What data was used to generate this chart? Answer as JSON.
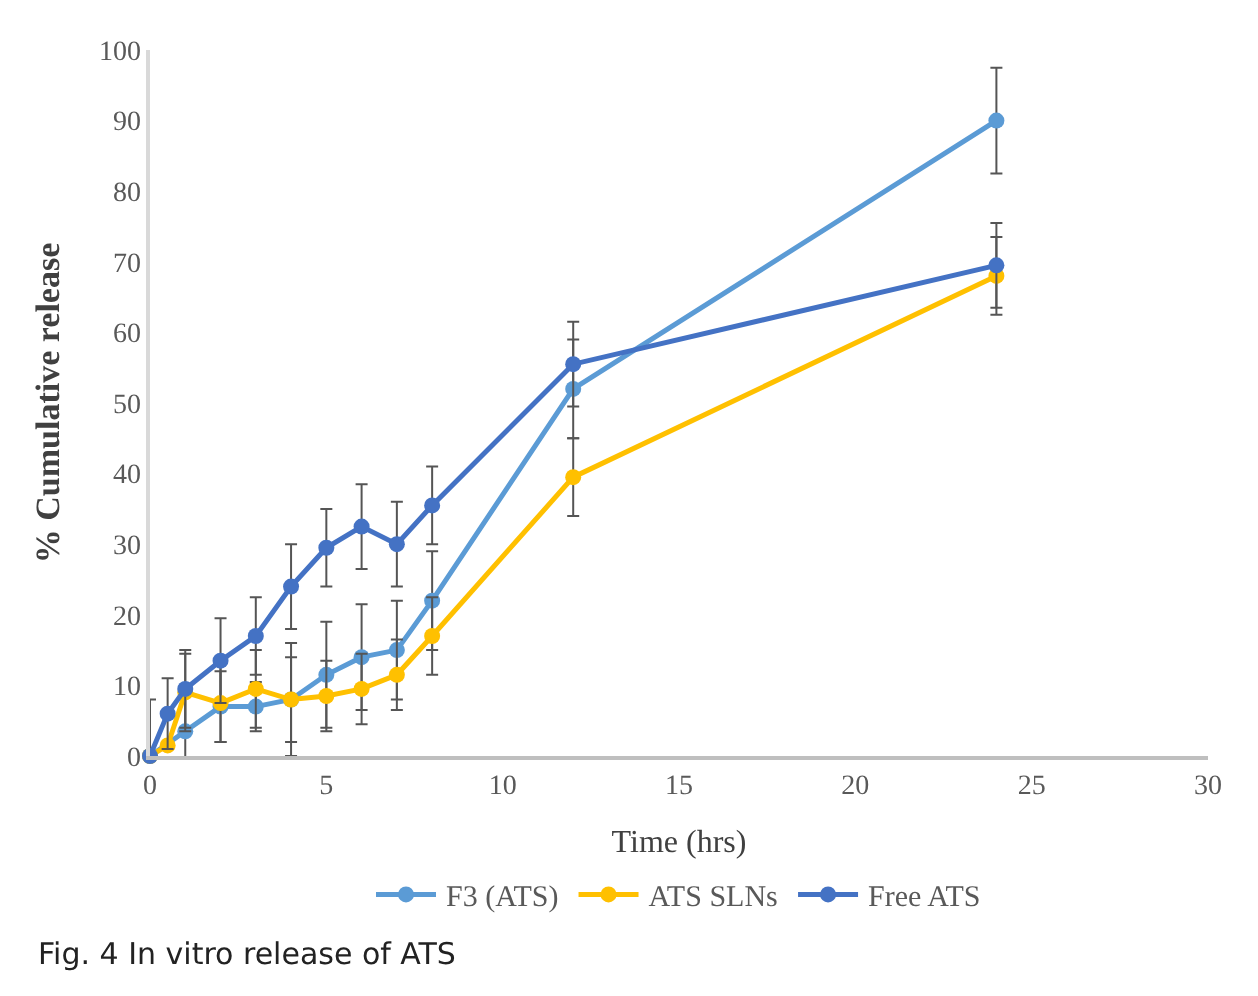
{
  "chart_data": {
    "type": "line",
    "xlabel": "Time (hrs)",
    "ylabel": "% Cumulative release",
    "annotations": [
      "Fig. 4 In vitro release of ATS"
    ],
    "xlim": [
      0,
      30
    ],
    "xticks": [
      0,
      5,
      10,
      15,
      20,
      25,
      30
    ],
    "ylim": [
      0,
      100
    ],
    "yticks": [
      0,
      10,
      20,
      30,
      40,
      50,
      60,
      70,
      80,
      90,
      100
    ],
    "grid": false,
    "legend": "bottom",
    "marker": "circle",
    "line_style": "solid",
    "series": [
      {
        "name": "F3 (ATS)",
        "color": "#5b9bd5",
        "x": [
          0,
          1,
          2,
          3,
          4,
          5,
          6,
          7,
          8,
          12,
          24
        ],
        "values": [
          0,
          3.5,
          7,
          7,
          8,
          11.5,
          14,
          15,
          22,
          52,
          90
        ],
        "errors": [
          null,
          5,
          5,
          3.5,
          8,
          7.5,
          7.5,
          7,
          7,
          7,
          7.5
        ]
      },
      {
        "name": "ATS SLNs",
        "color": "#ffc000",
        "x": [
          0,
          0.5,
          1,
          2,
          3,
          4,
          5,
          6,
          7,
          8,
          12,
          24
        ],
        "values": [
          0,
          1.5,
          9,
          7.5,
          9.5,
          8,
          8.5,
          9.5,
          11.5,
          17,
          39.5,
          68
        ],
        "errors": [
          null,
          null,
          5.5,
          5.5,
          5.5,
          6,
          5,
          5,
          5,
          5.5,
          5.5,
          5.5
        ]
      },
      {
        "name": "Free ATS",
        "color": "#4472c4",
        "x": [
          0,
          0.5,
          1,
          2,
          3,
          4,
          5,
          6,
          7,
          8,
          12,
          24
        ],
        "values": [
          0,
          6,
          9.5,
          13.5,
          17,
          24,
          29.5,
          32.5,
          30,
          35.5,
          55.5,
          69.5
        ],
        "errors": [
          8,
          5,
          5.5,
          6,
          5.5,
          6,
          5.5,
          6,
          6,
          5.5,
          6,
          6
        ]
      }
    ]
  }
}
